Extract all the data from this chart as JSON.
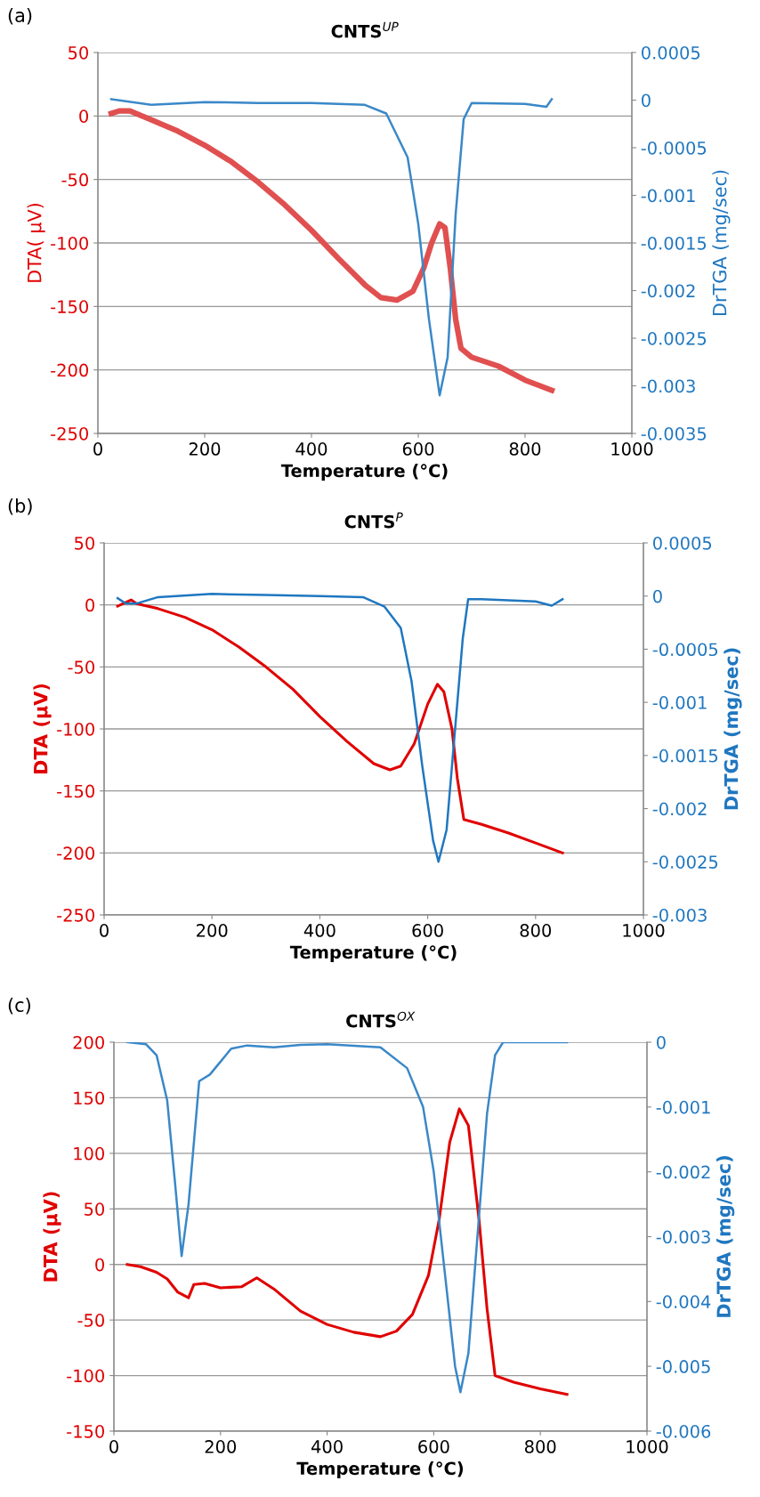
{
  "chart_data": [
    {
      "type": "line",
      "title": "CNTS$^{UP}$",
      "xlabel": "Temperature (°C)",
      "ylabel": "DTA( μV)",
      "y2label": "DrTGA (mg/sec)",
      "annotations": [
        "(a)"
      ],
      "xlim": [
        0,
        1000
      ],
      "xticks": [
        0,
        200,
        400,
        600,
        800,
        1000
      ],
      "ylim": [
        -250,
        50
      ],
      "yticks": [
        -250,
        -200,
        -150,
        -100,
        -50,
        0,
        50
      ],
      "y2lim": [
        -0.0035,
        0.0005
      ],
      "y2ticks": [
        -0.0035,
        -0.003,
        -0.0025,
        -0.002,
        -0.0015,
        -0.001,
        -0.0005,
        0,
        0.0005
      ],
      "grid": "y",
      "legend": false,
      "marker": "none",
      "line_style": "solid",
      "series": [
        {
          "color": "#e05050",
          "x": [
            25,
            40,
            60,
            100,
            150,
            200,
            250,
            300,
            350,
            400,
            450,
            500,
            530,
            560,
            590,
            610,
            625,
            640,
            650,
            660,
            670,
            680,
            700,
            750,
            800,
            850
          ],
          "values": [
            2,
            4,
            4,
            -3,
            -12,
            -23,
            -36,
            -52,
            -70,
            -90,
            -112,
            -133,
            -143,
            -145,
            -138,
            -120,
            -100,
            -85,
            -88,
            -120,
            -160,
            -183,
            -190,
            -197,
            -208,
            -216
          ]
        },
        {
          "color": "#3a88c8",
          "axis": "y2",
          "x": [
            25,
            100,
            200,
            300,
            400,
            500,
            540,
            580,
            600,
            620,
            640,
            655,
            670,
            685,
            700,
            800,
            840,
            850
          ],
          "values": [
            1e-05,
            -5e-05,
            -2e-05,
            -3e-05,
            -3e-05,
            -5e-05,
            -0.00014,
            -0.0006,
            -0.0013,
            -0.0023,
            -0.0031,
            -0.0027,
            -0.0012,
            -0.0002,
            -3e-05,
            -4e-05,
            -7e-05,
            1e-05
          ]
        }
      ]
    },
    {
      "type": "line",
      "title": "CNTS$^{P}$",
      "xlabel": "Temperature (°C)",
      "ylabel": "DTA (μV)",
      "y2label": "DrTGA (mg/sec)",
      "annotations": [
        "(b)"
      ],
      "xlim": [
        0,
        1000
      ],
      "xticks": [
        0,
        200,
        400,
        600,
        800,
        1000
      ],
      "ylim": [
        -250,
        50
      ],
      "yticks": [
        -250,
        -200,
        -150,
        -100,
        -50,
        0,
        50
      ],
      "y2lim": [
        -0.003,
        0.0005
      ],
      "y2ticks": [
        -0.003,
        -0.0025,
        -0.002,
        -0.0015,
        -0.001,
        -0.0005,
        0,
        0.0005
      ],
      "grid": "y",
      "legend": false,
      "marker": "none",
      "line_style": "solid",
      "series": [
        {
          "color": "#e00000",
          "x": [
            25,
            50,
            60,
            100,
            150,
            200,
            250,
            300,
            350,
            400,
            450,
            500,
            530,
            550,
            575,
            600,
            618,
            630,
            645,
            655,
            667,
            700,
            750,
            800,
            850
          ],
          "values": [
            -1,
            4,
            1,
            -3,
            -10,
            -20,
            -34,
            -50,
            -68,
            -90,
            -110,
            -128,
            -133,
            -130,
            -112,
            -80,
            -64,
            -70,
            -100,
            -140,
            -173,
            -177,
            -184,
            -192,
            -200
          ]
        },
        {
          "color": "#1f77c0",
          "axis": "y2",
          "x": [
            25,
            40,
            60,
            100,
            200,
            300,
            400,
            480,
            520,
            550,
            570,
            590,
            610,
            620,
            635,
            650,
            665,
            675,
            700,
            800,
            830,
            850
          ],
          "values": [
            -2e-05,
            -7e-05,
            -7e-05,
            -1e-05,
            2e-05,
            1e-05,
            0,
            -1e-05,
            -0.0001,
            -0.0003,
            -0.0008,
            -0.0016,
            -0.0023,
            -0.0025,
            -0.0022,
            -0.0013,
            -0.0004,
            -3e-05,
            -3e-05,
            -5e-05,
            -9e-05,
            -3e-05
          ]
        }
      ]
    },
    {
      "type": "line",
      "title": "CNTS$^{OX}$",
      "xlabel": "Temperature (°C)",
      "ylabel": "DTA (μV)",
      "y2label": "DrTGA (mg/sec)",
      "annotations": [
        "(c)"
      ],
      "xlim": [
        0,
        1000
      ],
      "xticks": [
        0,
        200,
        400,
        600,
        800,
        1000
      ],
      "ylim": [
        -150,
        200
      ],
      "yticks": [
        -150,
        -100,
        -50,
        0,
        50,
        100,
        150,
        200
      ],
      "y2lim": [
        -0.006,
        0
      ],
      "y2ticks": [
        -0.006,
        -0.005,
        -0.004,
        -0.003,
        -0.002,
        -0.001,
        0
      ],
      "grid": "y",
      "legend": false,
      "marker": "none",
      "line_style": "solid",
      "series": [
        {
          "color": "#e00000",
          "x": [
            25,
            50,
            80,
            100,
            120,
            140,
            150,
            170,
            200,
            240,
            268,
            300,
            350,
            400,
            450,
            500,
            530,
            560,
            590,
            610,
            630,
            648,
            665,
            685,
            700,
            715,
            750,
            800,
            850
          ],
          "values": [
            0,
            -2,
            -7,
            -13,
            -25,
            -30,
            -18,
            -17,
            -21,
            -20,
            -12,
            -22,
            -42,
            -54,
            -61,
            -65,
            -60,
            -45,
            -10,
            40,
            110,
            140,
            125,
            40,
            -40,
            -100,
            -106,
            -112,
            -117
          ]
        },
        {
          "color": "#3a88c8",
          "axis": "y2",
          "x": [
            25,
            60,
            80,
            100,
            115,
            127,
            140,
            160,
            180,
            200,
            220,
            250,
            300,
            350,
            400,
            500,
            550,
            580,
            600,
            620,
            640,
            650,
            665,
            680,
            700,
            715,
            730,
            850
          ],
          "values": [
            0,
            -3e-05,
            -0.0002,
            -0.0009,
            -0.0022,
            -0.0033,
            -0.0025,
            -0.0006,
            -0.0005,
            -0.0003,
            -0.0001,
            -5e-05,
            -8e-05,
            -4e-05,
            -3e-05,
            -8e-05,
            -0.0004,
            -0.001,
            -0.002,
            -0.0035,
            -0.005,
            -0.0054,
            -0.0048,
            -0.0032,
            -0.0011,
            -0.0002,
            0,
            0
          ]
        }
      ]
    }
  ]
}
